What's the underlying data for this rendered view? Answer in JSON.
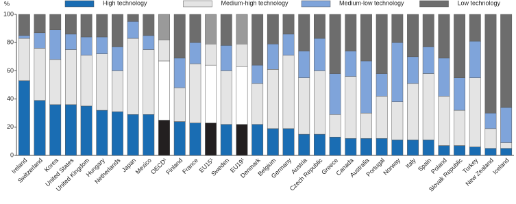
{
  "chart_data": {
    "type": "stacked_bar",
    "y_label": "%",
    "categories": [
      "Ireland",
      "Switzerland",
      "Korea",
      "United States",
      "United Kingdom",
      "Hungary",
      "Netherlands",
      "Japan",
      "Mexico",
      "OECD¹",
      "Finland",
      "France",
      "EU15¹",
      "Sweden",
      "EU19¹",
      "Denmark",
      "Belgium",
      "Germany",
      "Austria",
      "Czech Republic",
      "Greece",
      "Canada",
      "Australia",
      "Portugal",
      "Norway",
      "Italy",
      "Spain",
      "Poland",
      "Slovak Republic",
      "Turkey",
      "New Zealand",
      "Iceland"
    ],
    "highlighted_categories": [
      "OECD¹",
      "EU15¹",
      "EU19¹"
    ],
    "series": [
      {
        "name": "High technology",
        "color": "#1a6db3",
        "highlight_color": "#231f20",
        "values": [
          53,
          39,
          36,
          36,
          35,
          32,
          31,
          29,
          29,
          25,
          24,
          23,
          23,
          22,
          22,
          22,
          19,
          19,
          15,
          15,
          13,
          12,
          12,
          12,
          11,
          11,
          11,
          7,
          7,
          6,
          5,
          5
        ]
      },
      {
        "name": "Medium-high technology",
        "color": "#e4e4e4",
        "highlight_color": "#ffffff",
        "values": [
          30,
          37,
          32,
          39,
          36,
          40,
          29,
          54,
          46,
          42,
          24,
          42,
          41,
          38,
          41,
          29,
          42,
          52,
          40,
          45,
          16,
          44,
          18,
          30,
          27,
          40,
          47,
          35,
          25,
          49,
          14,
          4
        ]
      },
      {
        "name": "Medium-low technology",
        "color": "#7fa4da",
        "highlight_color": "#e4e4e4",
        "values": [
          2,
          11,
          21,
          11,
          13,
          12,
          17,
          12,
          10,
          15,
          21,
          15,
          15,
          18,
          16,
          13,
          18,
          15,
          19,
          23,
          29,
          18,
          37,
          16,
          42,
          19,
          19,
          27,
          23,
          26,
          11,
          25
        ]
      },
      {
        "name": "Low technology",
        "color": "#6d6d6d",
        "highlight_color": "#9a9a9a",
        "values": [
          15,
          13,
          11,
          14,
          16,
          16,
          23,
          5,
          15,
          18,
          31,
          20,
          21,
          22,
          21,
          36,
          21,
          14,
          26,
          17,
          42,
          26,
          33,
          42,
          20,
          30,
          23,
          31,
          45,
          19,
          70,
          66
        ]
      }
    ],
    "ylim": [
      0,
      100
    ],
    "yticks": [
      0,
      20,
      40,
      60,
      80,
      100
    ],
    "grid": false
  }
}
